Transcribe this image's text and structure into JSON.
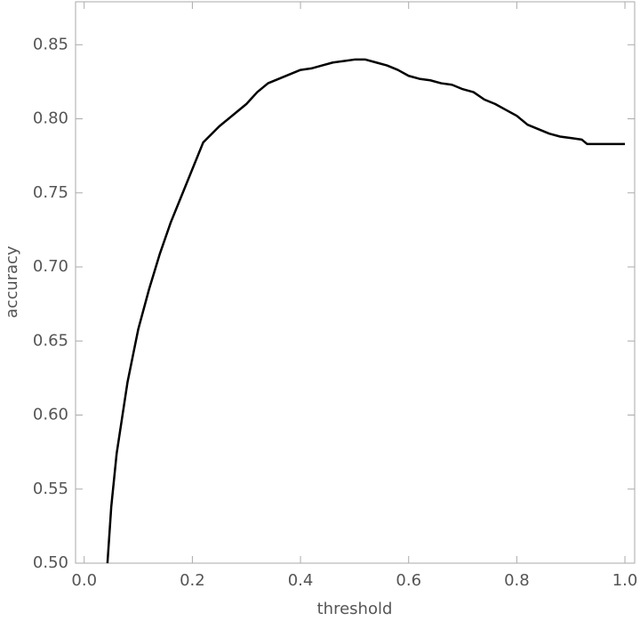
{
  "chart_data": {
    "type": "line",
    "x_label": "threshold",
    "y_label": "accuracy",
    "x": [
      0.043,
      0.05,
      0.06,
      0.07,
      0.08,
      0.09,
      0.1,
      0.12,
      0.14,
      0.16,
      0.18,
      0.2,
      0.22,
      0.25,
      0.28,
      0.3,
      0.32,
      0.34,
      0.36,
      0.38,
      0.4,
      0.42,
      0.44,
      0.46,
      0.48,
      0.5,
      0.52,
      0.54,
      0.56,
      0.58,
      0.6,
      0.62,
      0.64,
      0.66,
      0.68,
      0.7,
      0.72,
      0.74,
      0.76,
      0.78,
      0.8,
      0.82,
      0.84,
      0.86,
      0.88,
      0.9,
      0.92,
      0.93,
      1.0
    ],
    "values": [
      0.5,
      0.538,
      0.574,
      0.598,
      0.622,
      0.64,
      0.658,
      0.685,
      0.709,
      0.73,
      0.748,
      0.766,
      0.784,
      0.795,
      0.804,
      0.81,
      0.818,
      0.824,
      0.827,
      0.83,
      0.833,
      0.834,
      0.836,
      0.838,
      0.839,
      0.84,
      0.84,
      0.838,
      0.836,
      0.833,
      0.829,
      0.827,
      0.826,
      0.824,
      0.823,
      0.82,
      0.818,
      0.813,
      0.81,
      0.806,
      0.802,
      0.796,
      0.793,
      0.79,
      0.788,
      0.787,
      0.786,
      0.783,
      0.783
    ],
    "color": "#000000",
    "xlim": [
      -0.016,
      1.018
    ],
    "ylim": [
      0.5,
      0.879
    ],
    "xticks": [
      {
        "value": 0,
        "label": "0.0"
      },
      {
        "value": 0.2,
        "label": "0.2"
      },
      {
        "value": 0.4,
        "label": "0.4"
      },
      {
        "value": 0.6,
        "label": "0.6"
      },
      {
        "value": 0.8,
        "label": "0.8"
      },
      {
        "value": 1,
        "label": "1.0"
      }
    ],
    "yticks": [
      {
        "value": 0.5,
        "label": "0.50"
      },
      {
        "value": 0.55,
        "label": "0.55"
      },
      {
        "value": 0.6,
        "label": "0.60"
      },
      {
        "value": 0.65,
        "label": "0.65"
      },
      {
        "value": 0.7,
        "label": "0.70"
      },
      {
        "value": 0.75,
        "label": "0.75"
      },
      {
        "value": 0.8,
        "label": "0.80"
      },
      {
        "value": 0.85,
        "label": "0.85"
      }
    ]
  }
}
